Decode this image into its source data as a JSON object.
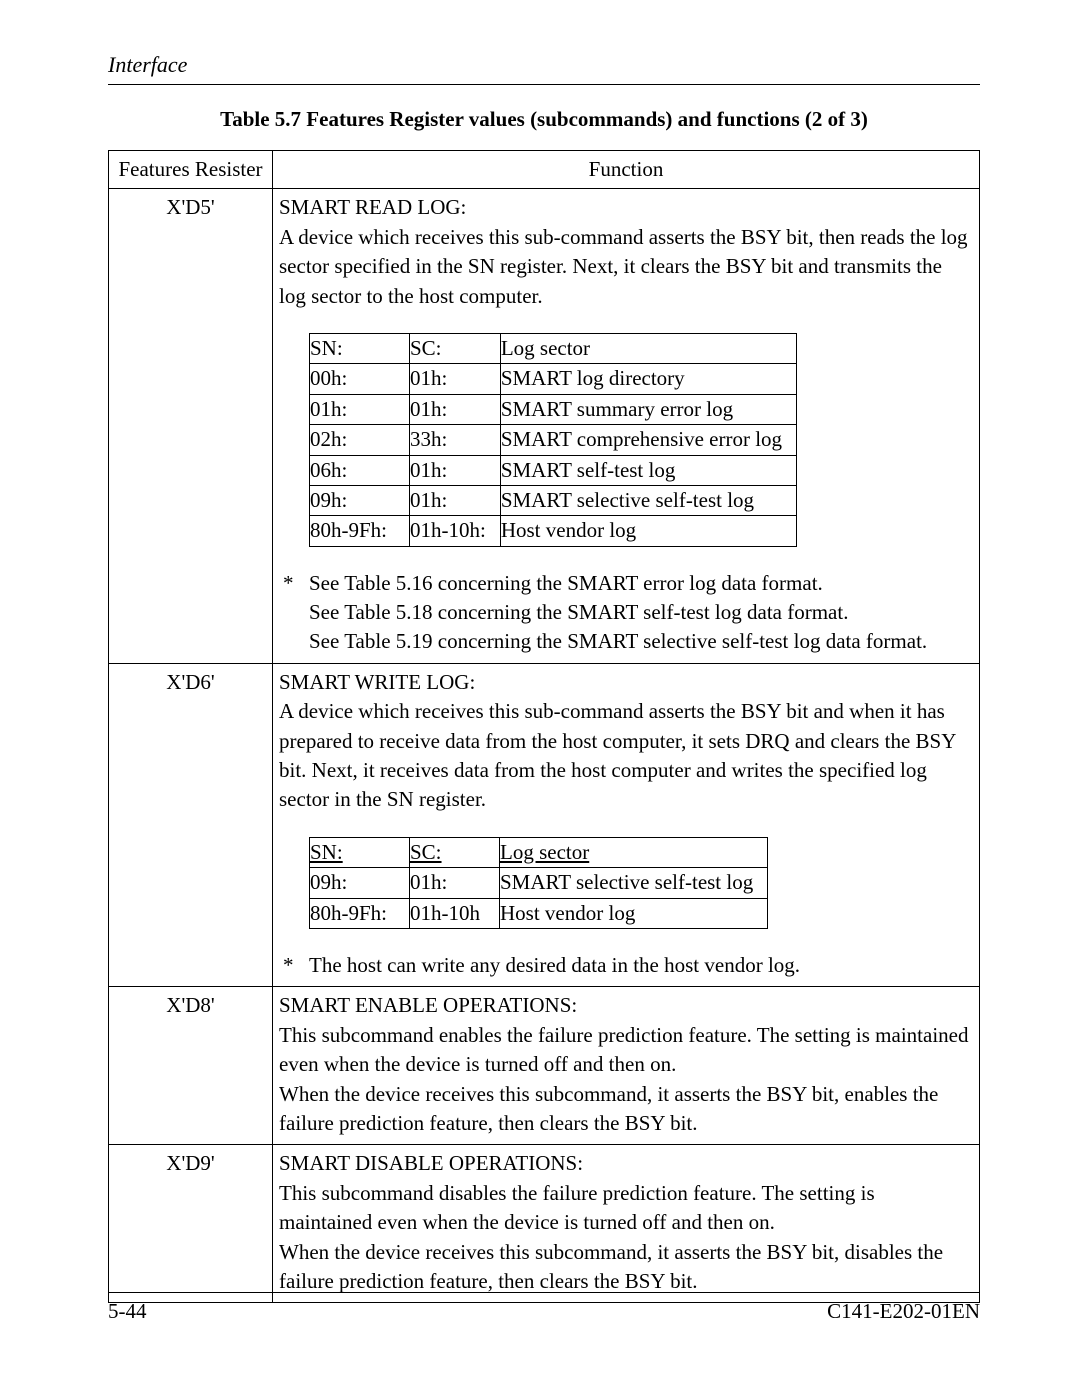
{
  "header": {
    "section": "Interface"
  },
  "tableTitle": "Table 5.7  Features Register values (subcommands) and functions (2 of 3)",
  "columns": {
    "feat": "Features Resister",
    "func": "Function"
  },
  "rows": {
    "d5": {
      "feat": "X'D5'",
      "title": "SMART READ LOG:",
      "para1": "A device which receives this sub-command asserts the BSY bit, then reads the log sector specified in the SN register.  Next, it clears the BSY bit and transmits the log sector to the host computer.",
      "subHeader": {
        "sn": "SN:",
        "sc": "SC:",
        "log": "Log sector"
      },
      "subRows": [
        {
          "sn": "00h:",
          "sc": "01h:",
          "log": "SMART log directory"
        },
        {
          "sn": "01h:",
          "sc": "01h:",
          "log": "SMART summary error log"
        },
        {
          "sn": "02h:",
          "sc": "33h:",
          "log": "SMART comprehensive error log"
        },
        {
          "sn": "06h:",
          "sc": "01h:",
          "log": "SMART self-test log"
        },
        {
          "sn": "09h:",
          "sc": "01h:",
          "log": "SMART selective self-test log"
        },
        {
          "sn": "80h-9Fh:",
          "sc": "01h-10h:",
          "log": "Host vendor log"
        }
      ],
      "noteStar": "*",
      "noteL1": "See Table 5.16 concerning the SMART error log data format.",
      "noteL2": "See Table 5.18 concerning the SMART self-test log data format.",
      "noteL3": "See Table 5.19 concerning the SMART selective self-test log data format."
    },
    "d6": {
      "feat": "X'D6'",
      "title": "SMART WRITE LOG:",
      "para1": "A device which receives this sub-command asserts the BSY bit and when it has prepared to receive data from the host computer, it sets DRQ and clears the BSY bit. Next, it receives data from the host computer and writes the specified log sector in the SN register.",
      "subHeader": {
        "sn": " SN: ",
        "sc": "SC: ",
        "log": "Log sector "
      },
      "subRows": [
        {
          "sn": "09h:",
          "sc": "01h:",
          "log": "SMART selective self-test log"
        },
        {
          "sn": "80h-9Fh:",
          "sc": "01h-10h",
          "log": "Host vendor log"
        }
      ],
      "noteStar": "*",
      "noteL1": "The host can write any desired data in the host vendor log."
    },
    "d8": {
      "feat": "X'D8'",
      "title": "SMART ENABLE OPERATIONS:",
      "para1": "This subcommand enables the failure prediction feature.  The setting is maintained even when the device is turned off and then on.",
      "para2": "When the device receives this subcommand, it asserts the BSY bit, enables the failure prediction feature, then clears the BSY bit."
    },
    "d9": {
      "feat": "X'D9'",
      "title": "SMART DISABLE OPERATIONS:",
      "para1": "This subcommand disables the failure prediction feature.  The setting is maintained even when the device is turned off and then on.",
      "para2": "When the device receives this subcommand, it asserts the BSY bit, disables the failure prediction feature, then clears the BSY bit."
    }
  },
  "footer": {
    "left": "5-44",
    "right": "C141-E202-01EN"
  }
}
